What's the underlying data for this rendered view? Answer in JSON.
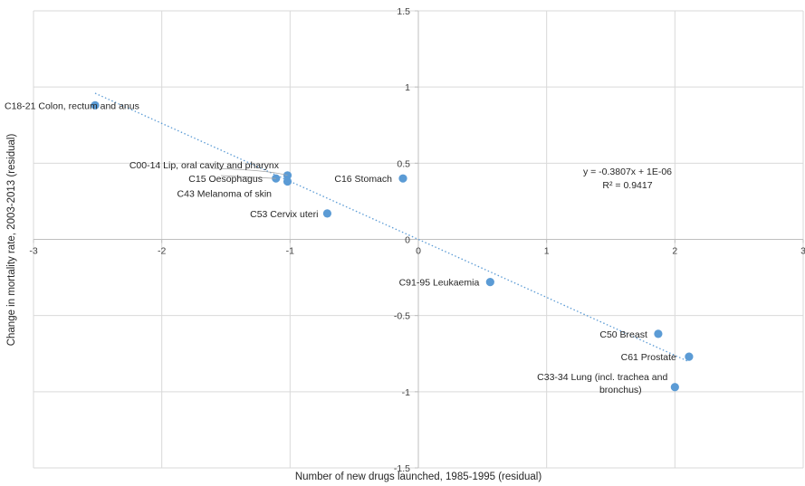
{
  "chart_data": {
    "type": "scatter",
    "title": "",
    "xlabel": "Number of new drugs launched, 1985-1995 (residual)",
    "ylabel": "Change in mortality rate, 2003-2013 (residual)",
    "xlim": [
      -3,
      3
    ],
    "ylim": [
      -1.5,
      1.5
    ],
    "x_ticks": [
      "-3",
      "-2",
      "-1",
      "0",
      "1",
      "2",
      "3"
    ],
    "y_ticks": [
      "1.5",
      "1",
      "0.5",
      "0",
      "-0.5",
      "-1",
      "-1.5"
    ],
    "grid": true,
    "marker_color": "#5b9bd5",
    "trendline_color": "#5b9bd5",
    "points": [
      {
        "label": "C18-21 Colon, rectum and anus",
        "x": -2.52,
        "y": 0.88
      },
      {
        "label": "C00-14 Lip, oral cavity and pharynx",
        "x": -1.02,
        "y": 0.42
      },
      {
        "label": "C15 Oesophagus",
        "x": -1.11,
        "y": 0.4
      },
      {
        "label": "C43 Melanoma of skin",
        "x": -1.02,
        "y": 0.38
      },
      {
        "label": "C16 Stomach",
        "x": -0.12,
        "y": 0.4
      },
      {
        "label": "C53 Cervix uteri",
        "x": -0.71,
        "y": 0.17
      },
      {
        "label": "C91-95 Leukaemia",
        "x": 0.56,
        "y": -0.28
      },
      {
        "label": "C50 Breast",
        "x": 1.87,
        "y": -0.62
      },
      {
        "label": "C61 Prostate",
        "x": 2.11,
        "y": -0.77
      },
      {
        "label": "C33-34 Lung (incl. trachea and bronchus)",
        "x": 2.0,
        "y": -0.97
      }
    ],
    "trendline": {
      "x_range": [
        -2.52,
        2.11
      ],
      "slope": -0.3807,
      "intercept": 1e-06,
      "equation": "y = -0.3807x + 1E-06",
      "r_squared": "R² = 0.9417"
    }
  }
}
